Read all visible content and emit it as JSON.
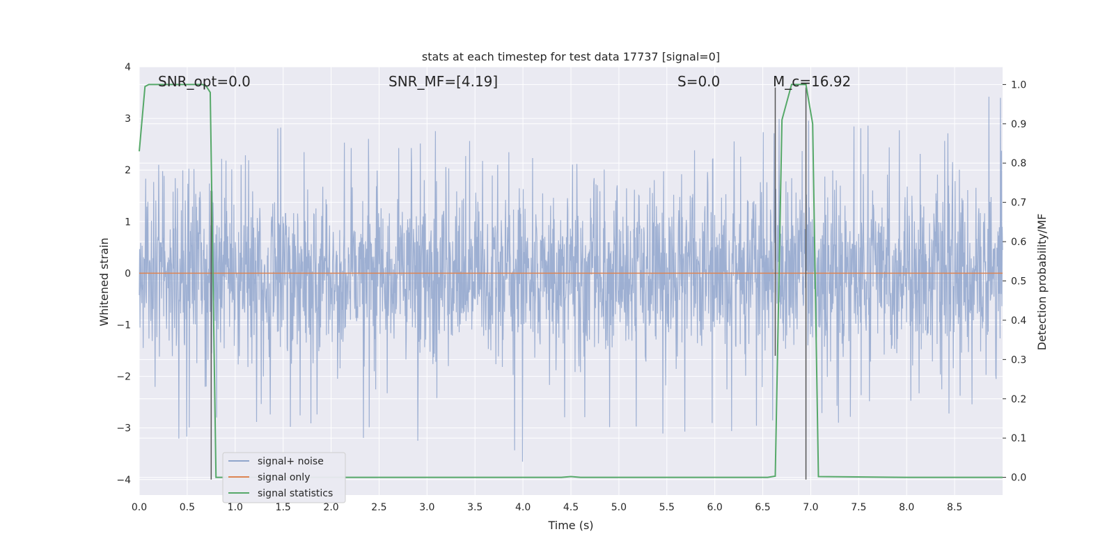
{
  "chart_data": {
    "type": "line",
    "title": "stats at each timestep for test data 17737 [signal=0]",
    "xlabel": "Time (s)",
    "ylabel": "Whitened strain",
    "y2label": "Detection probability/MF",
    "xlim": [
      0,
      9.0
    ],
    "ylim": [
      -4.3,
      4.0
    ],
    "y2lim": [
      -0.045,
      1.045
    ],
    "grid": true,
    "legend_placement": "lower-left",
    "x_ticks": [
      0.0,
      0.5,
      1.0,
      1.5,
      2.0,
      2.5,
      3.0,
      3.5,
      4.0,
      4.5,
      5.0,
      5.5,
      6.0,
      6.5,
      7.0,
      7.5,
      8.0,
      8.5
    ],
    "x_tick_labels": [
      "0.0",
      "0.5",
      "1.0",
      "1.5",
      "2.0",
      "2.5",
      "3.0",
      "3.5",
      "4.0",
      "4.5",
      "5.0",
      "5.5",
      "6.0",
      "6.5",
      "7.0",
      "7.5",
      "8.0",
      "8.5"
    ],
    "y_ticks": [
      -4,
      -3,
      -2,
      -1,
      0,
      1,
      2,
      3,
      4
    ],
    "y_tick_labels": [
      "−4",
      "−3",
      "−2",
      "−1",
      "0",
      "1",
      "2",
      "3",
      "4"
    ],
    "y2_ticks": [
      0.0,
      0.1,
      0.2,
      0.3,
      0.4,
      0.5,
      0.6,
      0.7,
      0.8,
      0.9,
      1.0
    ],
    "y2_tick_labels": [
      "0.0",
      "0.1",
      "0.2",
      "0.3",
      "0.4",
      "0.5",
      "0.6",
      "0.7",
      "0.8",
      "0.9",
      "1.0"
    ],
    "series": [
      {
        "name": "signal+ noise",
        "color": "#8fa5cc",
        "axis": "left",
        "description_values": "dense noise spanning roughly -4 to 3.6",
        "x": [
          0.0,
          0.75,
          1.5,
          2.25,
          3.0,
          3.75,
          4.5,
          5.25,
          6.0,
          6.75,
          7.5,
          8.25,
          9.0
        ],
        "envelope_max": [
          2.1,
          2.1,
          2.9,
          2.8,
          2.8,
          2.4,
          2.1,
          2.3,
          2.5,
          3.1,
          3.0,
          3.3,
          3.6
        ],
        "envelope_min": [
          -3.3,
          -3.3,
          -3.0,
          -3.5,
          -3.3,
          -4.0,
          -3.2,
          -3.1,
          -3.3,
          -3.3,
          -2.8,
          -2.8,
          -2.6
        ]
      },
      {
        "name": "signal only",
        "color": "#dd8452",
        "axis": "left",
        "x": [
          0.0,
          9.0
        ],
        "y": [
          0.0,
          0.0
        ]
      },
      {
        "name": "signal statistics",
        "color": "#55a868",
        "axis": "right",
        "x": [
          0.0,
          0.06,
          0.1,
          0.3,
          0.5,
          0.66,
          0.7,
          0.74,
          0.8,
          1.0,
          2.0,
          3.0,
          4.0,
          4.4,
          4.5,
          4.6,
          5.0,
          6.0,
          6.55,
          6.63,
          6.7,
          6.8,
          6.9,
          6.95,
          7.02,
          7.08,
          8.0,
          8.5,
          9.0
        ],
        "y": [
          0.83,
          0.995,
          1.0,
          1.0,
          1.0,
          1.0,
          0.995,
          0.98,
          0.0,
          0.0,
          0.0,
          0.0,
          0.0,
          0.0,
          0.002,
          0.0,
          0.0,
          0.0,
          0.0,
          0.003,
          0.91,
          1.0,
          1.0,
          1.0,
          0.9,
          0.002,
          0.0,
          0.0,
          0.0
        ]
      }
    ],
    "vertical_markers": [
      {
        "x": 0.75,
        "y_from": -4.0,
        "y_to": 1.6
      },
      {
        "x": 6.63,
        "y_from": -1.6,
        "y_to": 3.6
      },
      {
        "x": 6.95,
        "y_from": -4.0,
        "y_to": 3.6
      }
    ],
    "annotations": [
      {
        "label": "SNR_opt=0.0",
        "x": 0.2
      },
      {
        "label": "SNR_MF=[4.19]",
        "x": 2.6
      },
      {
        "label": "S=0.0",
        "x": 5.6
      },
      {
        "label": "M_c=16.92",
        "x": 6.6
      }
    ]
  }
}
